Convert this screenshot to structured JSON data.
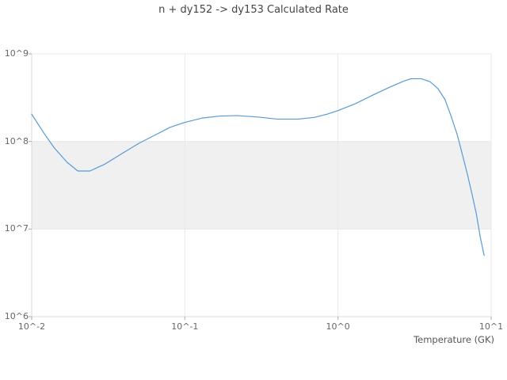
{
  "chart_data": {
    "type": "line",
    "title": "n + dy152 -> dy153 Calculated Rate",
    "xlabel": "Temperature (GK)",
    "ylabel": "",
    "x_scale": "log",
    "y_scale": "log",
    "xlim": [
      0.01,
      10
    ],
    "ylim": [
      1000000,
      1000000000
    ],
    "grid": true,
    "legend": "none",
    "x_tick_values": [
      0.01,
      0.1,
      1,
      10
    ],
    "x_tick_labels": [
      "10^-2",
      "10^-1",
      "10^0",
      "10^1"
    ],
    "y_tick_values": [
      1000000,
      10000000,
      100000000,
      1000000000
    ],
    "y_tick_labels": [
      "10^6",
      "10^7",
      "10^8",
      "10^9"
    ],
    "band": {
      "y_from": 10000000,
      "y_to": 100000000,
      "color": "#f0f0f0"
    },
    "colors": {
      "line": "#5899d4",
      "grid": "#e8e8e8",
      "axis": "#d9d9d9",
      "tick": "#aaaaaa"
    },
    "series": [
      {
        "name": "calculated-rate",
        "x": [
          0.01,
          0.012,
          0.014,
          0.017,
          0.02,
          0.024,
          0.03,
          0.04,
          0.05,
          0.065,
          0.08,
          0.1,
          0.13,
          0.17,
          0.22,
          0.3,
          0.4,
          0.55,
          0.7,
          0.85,
          1.0,
          1.3,
          1.7,
          2.2,
          2.7,
          3.0,
          3.5,
          4.0,
          4.5,
          5.0,
          5.5,
          6.0,
          6.5,
          7.0,
          7.5,
          8.0,
          8.5,
          9.0
        ],
        "y": [
          205000000.0,
          125000000.0,
          85000000.0,
          58000000.0,
          46000000.0,
          46000000.0,
          55000000.0,
          75000000.0,
          95000000.0,
          120000000.0,
          145000000.0,
          165000000.0,
          185000000.0,
          195000000.0,
          197000000.0,
          190000000.0,
          180000000.0,
          180000000.0,
          188000000.0,
          205000000.0,
          225000000.0,
          270000000.0,
          340000000.0,
          420000000.0,
          490000000.0,
          520000000.0,
          520000000.0,
          480000000.0,
          400000000.0,
          300000000.0,
          190000000.0,
          120000000.0,
          70000000.0,
          42000000.0,
          25000000.0,
          15000000.0,
          8000000.0,
          5000000.0
        ]
      }
    ]
  }
}
